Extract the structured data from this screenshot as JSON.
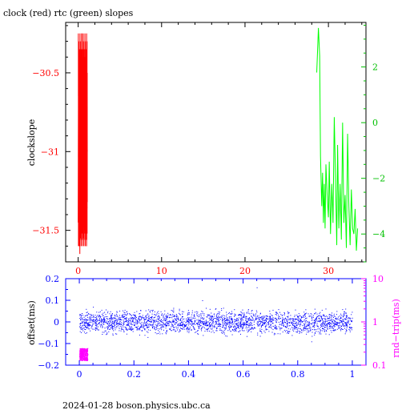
{
  "title": "clock (red) rtc (green) slopes",
  "footer": "2024-01-28  boson.physics.ubc.ca",
  "chart_data": [
    {
      "type": "line",
      "title": "clock (red) rtc (green) slopes",
      "xlabel": "",
      "ylabel": "clockslope",
      "xlim": [
        -1.5,
        34.5
      ],
      "ylim": [
        -31.7,
        -30.18
      ],
      "y2lim": [
        -5,
        3.6
      ],
      "x_ticks": [
        0,
        10,
        20,
        30
      ],
      "y_ticks": [
        -30.5,
        -31,
        -31.5
      ],
      "y2_ticks": [
        2,
        0,
        -2,
        -4
      ],
      "x_tick_labels": [
        "0",
        "10",
        "20",
        "30"
      ],
      "y_tick_labels": [
        "−30.5",
        "−31",
        "−31.5"
      ],
      "y2_tick_labels": [
        "2",
        "0",
        "−2",
        "−4"
      ],
      "series": [
        {
          "color": "#ff0000",
          "axis": "left",
          "x": [
            0.0,
            0.05,
            0.1,
            0.15,
            0.2,
            0.25,
            0.3,
            0.35,
            0.4,
            0.45,
            0.5,
            0.55,
            0.6,
            0.65,
            0.7,
            0.75,
            0.8,
            0.85,
            0.9,
            0.95,
            1.0,
            1.05,
            1.1
          ],
          "values": [
            -31.45,
            -30.45,
            -31.6,
            -30.6,
            -31.65,
            -30.35,
            -31.55,
            -30.5,
            -31.5,
            -30.25,
            -31.4,
            -30.45,
            -31.55,
            -30.55,
            -31.35,
            -30.65,
            -31.5,
            -30.7,
            -31.3,
            -30.75,
            -31.6,
            -30.9,
            -31.0
          ]
        },
        {
          "color": "#00ff00",
          "axis": "right",
          "x": [
            28.6,
            28.8,
            28.95,
            29.05,
            29.2,
            29.3,
            29.4,
            29.5,
            29.6,
            29.7,
            29.85,
            30.0,
            30.1,
            30.25,
            30.4,
            30.55,
            30.7,
            30.85,
            31.0,
            31.1,
            31.25,
            31.4,
            31.55,
            31.7,
            31.85,
            32.0,
            32.15,
            32.3,
            32.45,
            32.6,
            32.75,
            32.9,
            33.05,
            33.2,
            33.35,
            33.5
          ],
          "values": [
            1.8,
            3.4,
            2.4,
            -1.2,
            -3.0,
            -1.8,
            -3.6,
            -2.2,
            -3.8,
            -1.5,
            -2.6,
            -3.4,
            -1.4,
            -4.0,
            -2.2,
            -3.6,
            0.2,
            -2.0,
            -4.4,
            -0.8,
            -3.8,
            -2.2,
            -4.2,
            0.0,
            -3.6,
            -2.6,
            -4.5,
            -0.4,
            -3.0,
            -4.4,
            -2.4,
            -3.8,
            -4.0,
            -3.1,
            -4.6,
            -3.8
          ]
        }
      ]
    },
    {
      "type": "scatter",
      "xlabel": "",
      "ylabel": "offset(ms)",
      "y2label": "rnd−trip(ms)",
      "xlim": [
        -0.05,
        1.05
      ],
      "ylim": [
        -0.2,
        0.2
      ],
      "y2lim_log": [
        0.1,
        10
      ],
      "x_ticks": [
        0,
        0.2,
        0.4,
        0.6,
        0.8,
        1
      ],
      "y_ticks": [
        0.2,
        0.1,
        0,
        -0.1,
        -0.2
      ],
      "y2_ticks": [
        10,
        1,
        0.1
      ],
      "x_tick_labels": [
        "0",
        "0.2",
        "0.4",
        "0.6",
        "0.8",
        "1"
      ],
      "y_tick_labels": [
        "0.2",
        "0.1",
        "0",
        "−0.1",
        "−0.2"
      ],
      "y2_tick_labels": [
        "10",
        "1",
        "0.1"
      ],
      "series": [
        {
          "color": "#0000ff",
          "axis": "left",
          "x_range": [
            0,
            1
          ],
          "center": 0,
          "spread": 0.025,
          "outlier_values": [
            0.07,
            -0.07,
            0.1,
            0.16,
            -0.09
          ]
        },
        {
          "color": "#ff00ff",
          "axis": "right",
          "x_range": [
            0,
            0.03
          ],
          "rtt_range_ms": [
            0.13,
            0.25
          ]
        }
      ]
    }
  ]
}
